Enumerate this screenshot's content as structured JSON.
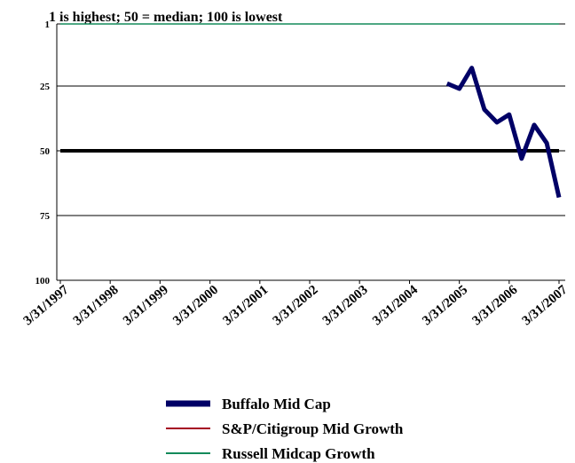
{
  "chart_data": {
    "type": "line",
    "subtitle": "1 is highest; 50 = median; 100 is lowest",
    "ylim": [
      1,
      100
    ],
    "yticks": [
      1,
      25,
      50,
      75,
      100
    ],
    "inverted_y": true,
    "xlim": [
      "3/31/1997",
      "3/31/2007"
    ],
    "xticks": [
      "3/31/1997",
      "3/31/1998",
      "3/31/1999",
      "3/31/2000",
      "3/31/2001",
      "3/31/2002",
      "3/31/2003",
      "3/31/2004",
      "3/31/2005",
      "3/31/2006",
      "3/31/2007"
    ],
    "reference_line": {
      "value": 50,
      "color": "#000000"
    },
    "series": [
      {
        "name": "Buffalo Mid Cap",
        "color": "#000066",
        "x": [
          "12/31/2004",
          "3/31/2005",
          "6/30/2005",
          "9/30/2005",
          "12/31/2005",
          "3/31/2006",
          "6/30/2006",
          "9/30/2006",
          "12/31/2006",
          "3/31/2007"
        ],
        "values": [
          24,
          26,
          18,
          34,
          39,
          36,
          53,
          40,
          47,
          68
        ]
      },
      {
        "name": "S&P/Citigroup Mid Growth",
        "color": "#a50021",
        "x": [],
        "values": []
      },
      {
        "name": "Russell Midcap Growth",
        "color": "#138a5a",
        "x": [
          "3/31/1997",
          "3/31/2007"
        ],
        "values": [
          1,
          1
        ]
      }
    ]
  }
}
